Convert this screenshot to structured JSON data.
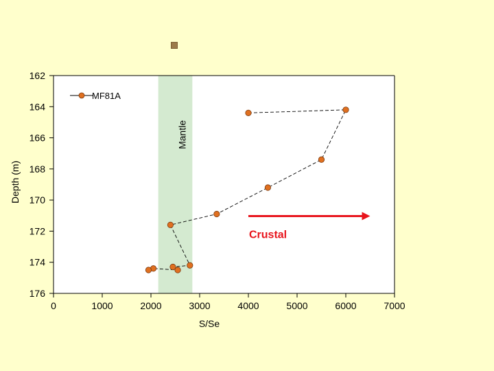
{
  "chart_data": {
    "type": "scatter",
    "title": "",
    "xlabel": "S/Se",
    "ylabel": "Depth (m)",
    "xlim": [
      0,
      7000
    ],
    "ylim": [
      176,
      162
    ],
    "xticks": [
      0,
      1000,
      2000,
      3000,
      4000,
      5000,
      6000,
      7000
    ],
    "yticks": [
      162,
      164,
      166,
      168,
      170,
      172,
      174,
      176
    ],
    "grid": false,
    "legend_position": "top-left",
    "series": [
      {
        "name": "MF81A",
        "color": "#e07020",
        "line_style": "dashed",
        "points": [
          {
            "x": 4000,
            "y": 164.4
          },
          {
            "x": 6000,
            "y": 164.2
          },
          {
            "x": 5500,
            "y": 167.4
          },
          {
            "x": 4400,
            "y": 169.2
          },
          {
            "x": 3350,
            "y": 170.9
          },
          {
            "x": 2400,
            "y": 171.6
          },
          {
            "x": 2800,
            "y": 174.2
          },
          {
            "x": 2450,
            "y": 174.3
          },
          {
            "x": 2550,
            "y": 174.5
          },
          {
            "x": 2050,
            "y": 174.4
          },
          {
            "x": 1950,
            "y": 174.5
          }
        ]
      }
    ],
    "mantle_band": {
      "label": "Mantle",
      "x_from": 2150,
      "x_to": 2850,
      "color": "#d4ead0"
    },
    "crustal_arrow": {
      "label": "Crustal",
      "x_from": 4000,
      "x_to": 6500,
      "y": 170.9,
      "color": "#e8141c"
    }
  }
}
